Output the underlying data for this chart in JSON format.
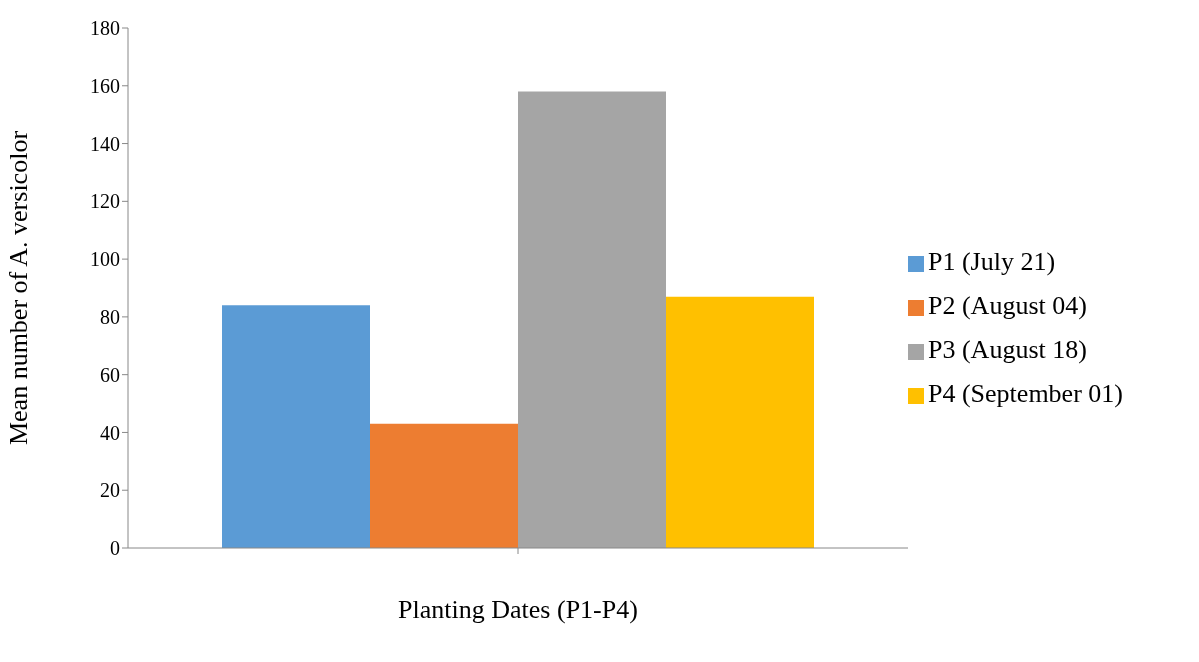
{
  "chart_data": {
    "type": "bar",
    "xlabel": "Planting Dates (P1-P4)",
    "ylabel": "Mean number of A. versicolor",
    "categories": [
      null
    ],
    "series": [
      {
        "name": "P1 (July 21)",
        "color": "#5b9bd5",
        "values": [
          84
        ]
      },
      {
        "name": "P2 (August 04)",
        "color": "#ed7d31",
        "values": [
          43
        ]
      },
      {
        "name": "P3 (August 18)",
        "color": "#a5a5a5",
        "values": [
          158
        ]
      },
      {
        "name": "P4 (September 01)",
        "color": "#ffc000",
        "values": [
          87
        ]
      }
    ],
    "ylim": [
      0,
      180
    ],
    "yticks": [
      0,
      20,
      40,
      60,
      80,
      100,
      120,
      140,
      160,
      180
    ],
    "grid": false,
    "legend": "right"
  }
}
